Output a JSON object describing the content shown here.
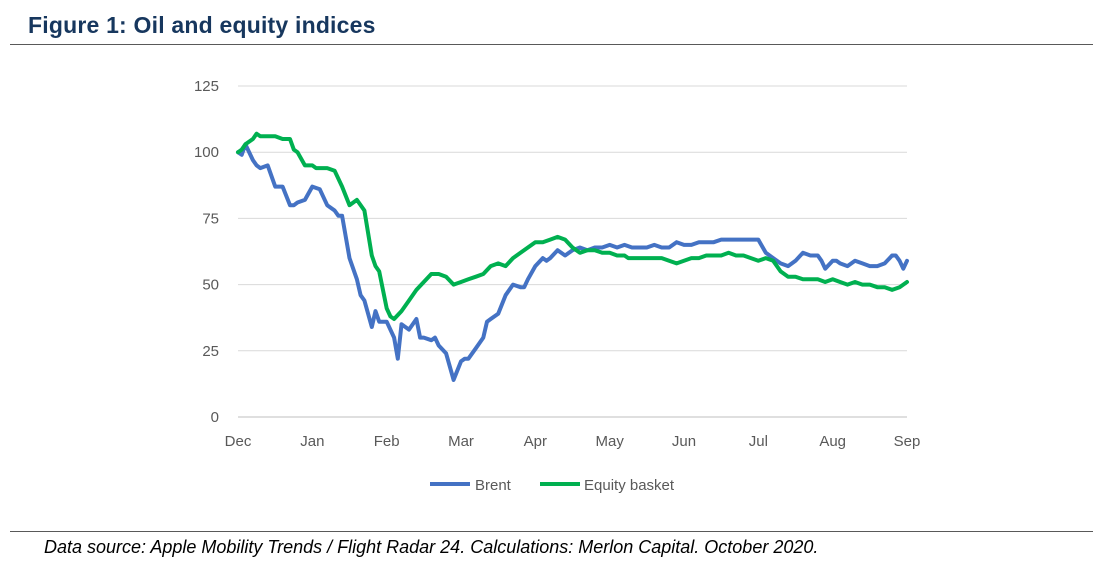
{
  "figure": {
    "title": "Figure 1: Oil and equity indices",
    "source": "Data source: Apple Mobility Trends / Flight Radar 24. Calculations: Merlon Capital. October 2020."
  },
  "chart_data": {
    "type": "line",
    "title": "",
    "xlabel": "",
    "ylabel": "",
    "ylim": [
      0,
      125
    ],
    "yticks": [
      0,
      25,
      50,
      75,
      100,
      125
    ],
    "xlim": [
      0,
      9
    ],
    "xticks": [
      {
        "label": "Dec",
        "pos": 0
      },
      {
        "label": "Jan",
        "pos": 1
      },
      {
        "label": "Feb",
        "pos": 2
      },
      {
        "label": "Mar",
        "pos": 3
      },
      {
        "label": "Apr",
        "pos": 4
      },
      {
        "label": "May",
        "pos": 5
      },
      {
        "label": "Jun",
        "pos": 6
      },
      {
        "label": "Jul",
        "pos": 7
      },
      {
        "label": "Aug",
        "pos": 8
      },
      {
        "label": "Sep",
        "pos": 9
      }
    ],
    "grid": "horizontal",
    "legend_position": "bottom",
    "series": [
      {
        "name": "Brent",
        "color": "#4472c4",
        "x": [
          0,
          0.05,
          0.1,
          0.2,
          0.25,
          0.3,
          0.4,
          0.5,
          0.6,
          0.7,
          0.75,
          0.8,
          0.9,
          1.0,
          1.1,
          1.2,
          1.3,
          1.35,
          1.4,
          1.5,
          1.6,
          1.65,
          1.7,
          1.8,
          1.85,
          1.9,
          2.0,
          2.1,
          2.15,
          2.2,
          2.3,
          2.4,
          2.45,
          2.5,
          2.6,
          2.65,
          2.7,
          2.8,
          2.9,
          3.0,
          3.05,
          3.1,
          3.2,
          3.3,
          3.35,
          3.4,
          3.5,
          3.6,
          3.7,
          3.8,
          3.85,
          3.9,
          4.0,
          4.1,
          4.15,
          4.2,
          4.3,
          4.4,
          4.5,
          4.6,
          4.7,
          4.8,
          4.9,
          5.0,
          5.1,
          5.2,
          5.3,
          5.4,
          5.5,
          5.6,
          5.7,
          5.8,
          5.9,
          6.0,
          6.1,
          6.2,
          6.3,
          6.4,
          6.5,
          6.6,
          6.7,
          6.8,
          6.9,
          7.0,
          7.1,
          7.2,
          7.3,
          7.4,
          7.5,
          7.6,
          7.7,
          7.8,
          7.85,
          7.9,
          8.0,
          8.05,
          8.1,
          8.2,
          8.3,
          8.4,
          8.5,
          8.6,
          8.7,
          8.8,
          8.85,
          8.9,
          8.95,
          9.0
        ],
        "values": [
          100,
          99,
          103,
          97,
          95,
          94,
          95,
          87,
          87,
          80,
          80,
          81,
          82,
          87,
          86,
          80,
          78,
          76,
          76,
          60,
          52,
          46,
          44,
          34,
          40,
          36,
          36,
          30,
          22,
          35,
          33,
          37,
          30,
          30,
          29,
          30,
          27,
          24,
          14,
          21,
          22,
          22,
          26,
          30,
          36,
          37,
          39,
          46,
          50,
          49,
          49,
          52,
          57,
          60,
          59,
          60,
          63,
          61,
          63,
          64,
          63,
          64,
          64,
          65,
          64,
          65,
          64,
          64,
          64,
          65,
          64,
          64,
          66,
          65,
          65,
          66,
          66,
          66,
          67,
          67,
          67,
          67,
          67,
          67,
          62,
          60,
          58,
          57,
          59,
          62,
          61,
          61,
          59,
          56,
          59,
          59,
          58,
          57,
          59,
          58,
          57,
          57,
          58,
          61,
          61,
          59,
          56,
          59
        ]
      },
      {
        "name": "Equity basket",
        "color": "#00b050",
        "x": [
          0,
          0.05,
          0.1,
          0.2,
          0.25,
          0.3,
          0.4,
          0.5,
          0.6,
          0.7,
          0.75,
          0.8,
          0.9,
          1.0,
          1.05,
          1.1,
          1.2,
          1.3,
          1.4,
          1.5,
          1.6,
          1.7,
          1.8,
          1.85,
          1.9,
          2.0,
          2.05,
          2.1,
          2.2,
          2.3,
          2.4,
          2.5,
          2.6,
          2.65,
          2.7,
          2.8,
          2.9,
          3.0,
          3.1,
          3.2,
          3.3,
          3.4,
          3.5,
          3.6,
          3.7,
          3.8,
          3.9,
          4.0,
          4.1,
          4.2,
          4.3,
          4.4,
          4.5,
          4.6,
          4.7,
          4.8,
          4.9,
          5.0,
          5.1,
          5.2,
          5.25,
          5.3,
          5.4,
          5.5,
          5.6,
          5.7,
          5.8,
          5.9,
          6.0,
          6.1,
          6.2,
          6.3,
          6.4,
          6.5,
          6.6,
          6.7,
          6.8,
          6.9,
          7.0,
          7.1,
          7.2,
          7.3,
          7.4,
          7.5,
          7.6,
          7.7,
          7.8,
          7.9,
          8.0,
          8.1,
          8.2,
          8.3,
          8.4,
          8.5,
          8.6,
          8.7,
          8.8,
          8.9,
          8.95,
          9.0
        ],
        "values": [
          100,
          101,
          103,
          105,
          107,
          106,
          106,
          106,
          105,
          105,
          101,
          100,
          95,
          95,
          94,
          94,
          94,
          93,
          87,
          80,
          82,
          78,
          61,
          57,
          55,
          41,
          38,
          37,
          40,
          44,
          48,
          51,
          54,
          54,
          54,
          53,
          50,
          51,
          52,
          53,
          54,
          57,
          58,
          57,
          60,
          62,
          64,
          66,
          66,
          67,
          68,
          67,
          64,
          62,
          63,
          63,
          62,
          62,
          61,
          61,
          60,
          60,
          60,
          60,
          60,
          60,
          59,
          58,
          59,
          60,
          60,
          61,
          61,
          61,
          62,
          61,
          61,
          60,
          59,
          60,
          59,
          55,
          53,
          53,
          52,
          52,
          52,
          51,
          52,
          51,
          50,
          51,
          50,
          50,
          49,
          49,
          48,
          49,
          50,
          51
        ]
      }
    ]
  }
}
